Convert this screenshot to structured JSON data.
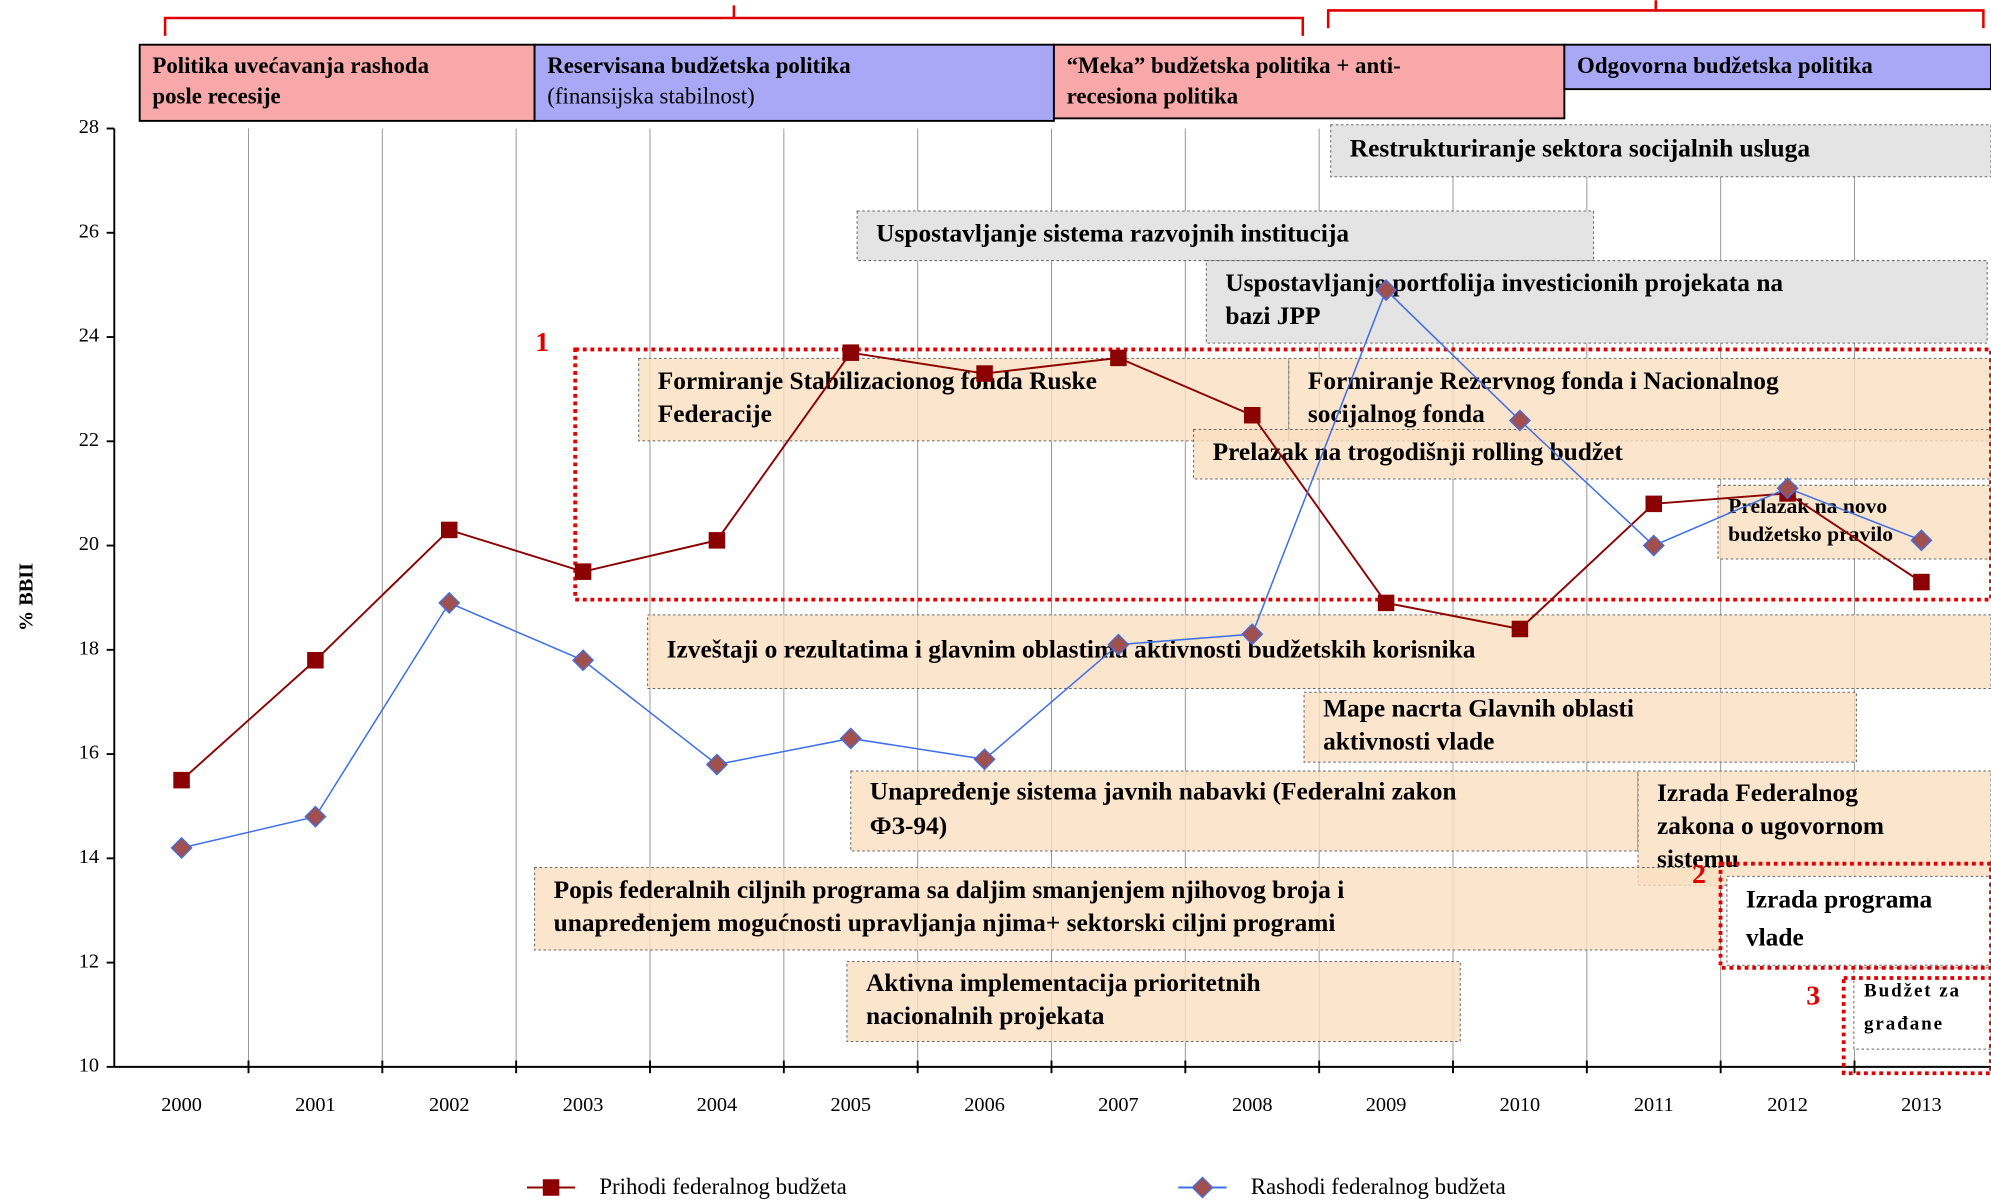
{
  "chart_data": {
    "type": "line",
    "ylabel": "% BBII",
    "categories": [
      "2000",
      "2001",
      "2002",
      "2003",
      "2004",
      "2005",
      "2006",
      "2007",
      "2008",
      "2009",
      "2010",
      "2011",
      "2012",
      "2013"
    ],
    "series": [
      {
        "name": "Prihodi federalnog budžeta",
        "color": "#8b0000",
        "marker": "square",
        "marker_color": "#8b0000",
        "values": [
          15.5,
          17.8,
          20.3,
          19.5,
          20.1,
          23.7,
          23.3,
          23.6,
          22.5,
          18.9,
          18.4,
          20.8,
          21.0,
          19.3
        ]
      },
      {
        "name": "Rashodi federalnog budžeta",
        "color": "#3f6fe6",
        "marker": "diamond",
        "marker_color": "#a0504e",
        "values": [
          14.2,
          14.8,
          18.9,
          17.8,
          15.8,
          16.3,
          15.9,
          18.1,
          18.3,
          24.9,
          22.4,
          20.0,
          21.1,
          20.1
        ]
      }
    ],
    "ylim": [
      10,
      28
    ],
    "yticks": [
      10,
      12,
      14,
      16,
      18,
      20,
      22,
      24,
      26,
      28
    ],
    "periods": [
      {
        "lines": [
          "Politika uvećavanja rashoda",
          "posle recesije"
        ]
      },
      {
        "lines": [
          "Reservisana budžetska politika",
          "(finansijska stabilnost)"
        ]
      },
      {
        "lines": [
          "“Meka” budžetska politika + anti-",
          "recesiona politika"
        ]
      },
      {
        "lines": [
          "Odgovorna budžetska politika"
        ]
      }
    ],
    "annotations": [
      {
        "lines": [
          "Restrukturiranje sektora socijalnih usluga"
        ]
      },
      {
        "lines": [
          "Uspostavljanje sistema razvojnih institucija"
        ]
      },
      {
        "lines": [
          "Uspostavljanje portfolija investicionih projekata na",
          "bazi JPP"
        ]
      },
      {
        "lines": [
          "Formiranje Stabilizacionog fonda Ruske",
          "Federacije"
        ]
      },
      {
        "lines": [
          "Formiranje Rezervnog fonda i Nacionalnog",
          "socijalnog fonda"
        ]
      },
      {
        "lines": [
          "Prelazak na trogodišnji rolling budžet"
        ]
      },
      {
        "lines": [
          "Prelazak na novo",
          "budžetsko pravilo"
        ]
      },
      {
        "lines": [
          "Izveštaji o rezultatima i glavnim oblastima aktivnosti budžetskih korisnika"
        ]
      },
      {
        "lines": [
          "Mape nacrta Glavnih oblasti",
          "aktivnosti vlade"
        ]
      },
      {
        "lines": [
          "Unapređenje sistema javnih nabavki (Federalni zakon",
          "ФЗ-94)"
        ]
      },
      {
        "lines": [
          "Izrada Federalnog",
          "zakona o ugovornom",
          "sistemu"
        ]
      },
      {
        "lines": [
          "Popis federalnih ciljnih programa  sa daljim smanjenjem njihovog broja i",
          "unapređenjem mogućnosti upravljanja njima+ sektorski ciljni programi"
        ]
      },
      {
        "lines": [
          "Izrada programa",
          "vlade"
        ]
      },
      {
        "lines": [
          "Aktivna implementacija prioritetnih",
          "nacionalnih projekata"
        ]
      },
      {
        "lines": [
          "Budžet za",
          "građane"
        ]
      }
    ],
    "markers": [
      "1",
      "2",
      "3"
    ]
  }
}
